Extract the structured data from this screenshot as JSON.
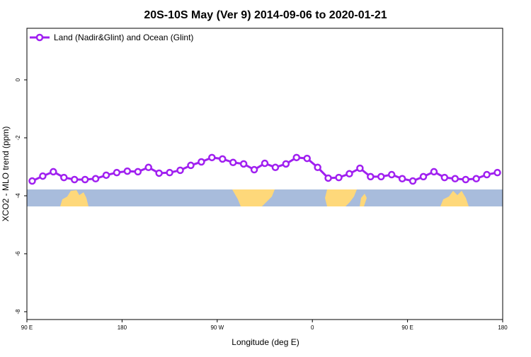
{
  "chart_data": {
    "type": "line",
    "title": "20S-10S May (Ver 9)   2014-09-06 to 2020-01-21",
    "x_label": "Longitude (deg E)",
    "y_label": "XCO2 - MLO trend (ppm)",
    "x": [
      95,
      105,
      115,
      125,
      135,
      145,
      155,
      165,
      175,
      185,
      195,
      205,
      215,
      225,
      235,
      245,
      255,
      265,
      275,
      285,
      295,
      305,
      315,
      325,
      335,
      345,
      355,
      365,
      375,
      385,
      395,
      405,
      415,
      425,
      435,
      445,
      455,
      465,
      475,
      485,
      495,
      505,
      515,
      525,
      535
    ],
    "series": [
      {
        "name": "Land (Nadir&Glint) and Ocean (Glint)",
        "color": "#a020f0",
        "values": [
          -3.49,
          -3.32,
          -3.17,
          -3.37,
          -3.44,
          -3.44,
          -3.41,
          -3.29,
          -3.2,
          -3.15,
          -3.17,
          -3.02,
          -3.22,
          -3.2,
          -3.12,
          -2.95,
          -2.83,
          -2.68,
          -2.73,
          -2.85,
          -2.9,
          -3.1,
          -2.88,
          -3.02,
          -2.9,
          -2.68,
          -2.71,
          -3.02,
          -3.39,
          -3.37,
          -3.24,
          -3.05,
          -3.34,
          -3.34,
          -3.27,
          -3.41,
          -3.49,
          -3.34,
          -3.17,
          -3.37,
          -3.41,
          -3.44,
          -3.41,
          -3.27,
          -3.2
        ]
      }
    ],
    "xlim": [
      90,
      540
    ],
    "xticks": [
      {
        "value": 90,
        "label": "90 E"
      },
      180,
      {
        "value": 270,
        "label": "90 W"
      },
      {
        "value": 360,
        "label": "0"
      },
      {
        "value": 450,
        "label": "90 E"
      },
      {
        "value": 540,
        "label": "180"
      }
    ],
    "ylim": [
      -8.27,
      1.78
    ],
    "yticks": [
      0,
      -2,
      -4,
      -6,
      -8
    ],
    "legend": "top-left"
  }
}
